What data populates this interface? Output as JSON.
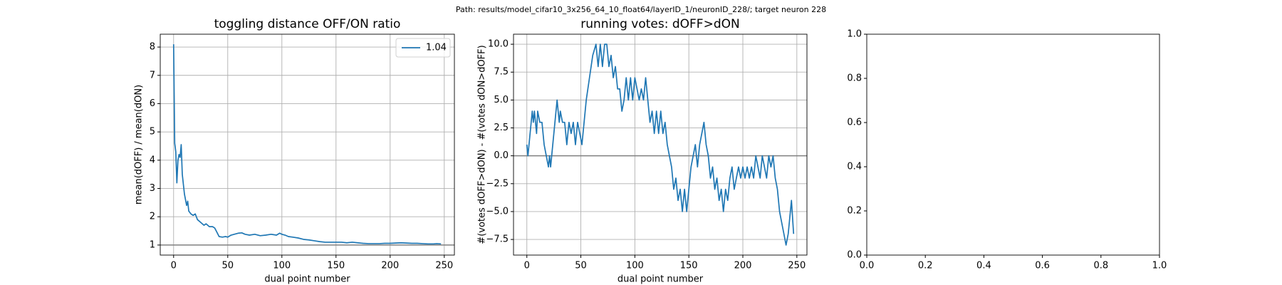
{
  "suptitle": "Path: results/model_cifar10_3x256_64_10_float64/layerID_1/neuronID_228/; target neuron 228",
  "chart_data": [
    {
      "type": "line",
      "title": "toggling distance OFF/ON ratio",
      "xlabel": "dual point number",
      "ylabel": "mean(dOFF) / mean(dON)",
      "xlim": [
        -12.35,
        259.35
      ],
      "ylim": [
        0.645,
        8.455
      ],
      "xticks": [
        0,
        50,
        100,
        150,
        200,
        250
      ],
      "yticks": [
        1,
        2,
        3,
        4,
        5,
        6,
        7,
        8
      ],
      "grid": true,
      "hlines": [
        1
      ],
      "hline_color": "#808080",
      "legend": "upper right",
      "x": [
        0,
        1,
        2,
        3,
        4,
        5,
        6,
        7,
        8,
        10,
        12,
        13,
        14,
        16,
        18,
        20,
        22,
        25,
        28,
        30,
        33,
        36,
        38,
        40,
        42,
        45,
        48,
        50,
        53,
        56,
        60,
        63,
        66,
        70,
        75,
        80,
        85,
        90,
        95,
        98,
        100,
        103,
        106,
        110,
        115,
        120,
        125,
        130,
        135,
        140,
        145,
        150,
        155,
        160,
        165,
        170,
        175,
        180,
        185,
        190,
        195,
        200,
        205,
        210,
        215,
        220,
        225,
        230,
        235,
        240,
        243,
        247
      ],
      "series": [
        {
          "name": "1.04",
          "color": "#1f77b4",
          "values": [
            8.1,
            4.6,
            4.3,
            3.2,
            4.0,
            4.2,
            4.1,
            4.55,
            3.5,
            2.8,
            2.4,
            2.55,
            2.2,
            2.1,
            2.05,
            2.1,
            1.9,
            1.8,
            1.7,
            1.75,
            1.65,
            1.65,
            1.6,
            1.45,
            1.3,
            1.28,
            1.3,
            1.28,
            1.35,
            1.38,
            1.42,
            1.43,
            1.38,
            1.35,
            1.38,
            1.33,
            1.35,
            1.38,
            1.35,
            1.42,
            1.38,
            1.35,
            1.3,
            1.28,
            1.25,
            1.2,
            1.18,
            1.15,
            1.12,
            1.1,
            1.1,
            1.1,
            1.1,
            1.08,
            1.1,
            1.08,
            1.06,
            1.05,
            1.05,
            1.05,
            1.06,
            1.06,
            1.07,
            1.08,
            1.07,
            1.06,
            1.06,
            1.05,
            1.04,
            1.04,
            1.05,
            1.04
          ]
        }
      ]
    },
    {
      "type": "line",
      "title": "running votes: dOFF>dON",
      "xlabel": "dual point number",
      "ylabel": "#(votes dOFF>dON) - #(votes dON>dOFF)",
      "xlim": [
        -12.35,
        259.35
      ],
      "ylim": [
        -8.9,
        10.9
      ],
      "xticks": [
        0,
        50,
        100,
        150,
        200,
        250
      ],
      "yticks": [
        {
          "value": -7.5,
          "label": "−7.5"
        },
        {
          "value": -5,
          "label": "−5.0"
        },
        {
          "value": -2.5,
          "label": "−2.5"
        },
        {
          "value": 0,
          "label": "0.0"
        },
        {
          "value": 2.5,
          "label": "2.5"
        },
        {
          "value": 5,
          "label": "5.0"
        },
        {
          "value": 7.5,
          "label": "7.5"
        },
        {
          "value": 10,
          "label": "10.0"
        }
      ],
      "grid": true,
      "hlines": [
        0
      ],
      "hline_color": "#808080",
      "x": [
        0,
        1,
        2,
        4,
        5,
        6,
        7,
        9,
        10,
        12,
        14,
        16,
        18,
        20,
        21,
        22,
        24,
        26,
        28,
        30,
        31,
        33,
        35,
        37,
        39,
        41,
        43,
        45,
        47,
        49,
        51,
        53,
        55,
        58,
        61,
        64,
        66,
        68,
        70,
        72,
        74,
        76,
        78,
        80,
        82,
        84,
        86,
        88,
        90,
        92,
        94,
        96,
        98,
        100,
        102,
        104,
        106,
        108,
        110,
        112,
        114,
        116,
        118,
        120,
        122,
        124,
        126,
        128,
        130,
        132,
        134,
        136,
        138,
        140,
        142,
        144,
        146,
        148,
        150,
        152,
        154,
        156,
        158,
        160,
        162,
        164,
        166,
        168,
        170,
        172,
        174,
        176,
        178,
        180,
        182,
        184,
        186,
        188,
        190,
        192,
        194,
        196,
        198,
        200,
        202,
        204,
        206,
        208,
        210,
        212,
        214,
        216,
        218,
        220,
        222,
        224,
        226,
        228,
        230,
        232,
        234,
        236,
        238,
        240,
        242,
        244,
        245,
        247
      ],
      "series": [
        {
          "name": "running votes",
          "color": "#1f77b4",
          "values": [
            1,
            0,
            1,
            3,
            4,
            3,
            4,
            2,
            4,
            3,
            3,
            1,
            0,
            -1,
            0,
            -1,
            1,
            3,
            5,
            3,
            4,
            3,
            3,
            1,
            3,
            2,
            3,
            1,
            3,
            2,
            1,
            3,
            5,
            7,
            9,
            10,
            8,
            10,
            8,
            10,
            10,
            8,
            9,
            7,
            8,
            6,
            6,
            4,
            5,
            7,
            5,
            7,
            5,
            7,
            6,
            5,
            6,
            5,
            7,
            5,
            3,
            4,
            2,
            4,
            2,
            4,
            2,
            3,
            1,
            0,
            -1,
            -3,
            -2,
            -4,
            -3,
            -5,
            -3,
            -5,
            -3,
            -1,
            0,
            1,
            -1,
            1,
            2,
            3,
            1,
            0,
            -2,
            -1,
            -3,
            -2,
            -4,
            -3,
            -5,
            -3,
            -4,
            -2,
            -1,
            -3,
            -2,
            -1,
            -2,
            -1,
            -2,
            -1,
            -2,
            -1,
            -2,
            0,
            -1,
            -2,
            0,
            -1,
            -2,
            0,
            -1,
            0,
            -2,
            -3,
            -5,
            -6,
            -7,
            -8,
            -7,
            -5,
            -4,
            -7
          ]
        }
      ]
    },
    {
      "type": "empty",
      "xlim": [
        0,
        1
      ],
      "ylim": [
        0,
        1
      ],
      "xticks": [
        {
          "value": 0,
          "label": "0.0"
        },
        {
          "value": 0.2,
          "label": "0.2"
        },
        {
          "value": 0.4,
          "label": "0.4"
        },
        {
          "value": 0.6,
          "label": "0.6"
        },
        {
          "value": 0.8,
          "label": "0.8"
        },
        {
          "value": 1,
          "label": "1.0"
        }
      ],
      "yticks": [
        {
          "value": 0,
          "label": "0.0"
        },
        {
          "value": 0.2,
          "label": "0.2"
        },
        {
          "value": 0.4,
          "label": "0.4"
        },
        {
          "value": 0.6,
          "label": "0.6"
        },
        {
          "value": 0.8,
          "label": "0.8"
        },
        {
          "value": 1,
          "label": "1.0"
        }
      ],
      "grid": false
    }
  ]
}
